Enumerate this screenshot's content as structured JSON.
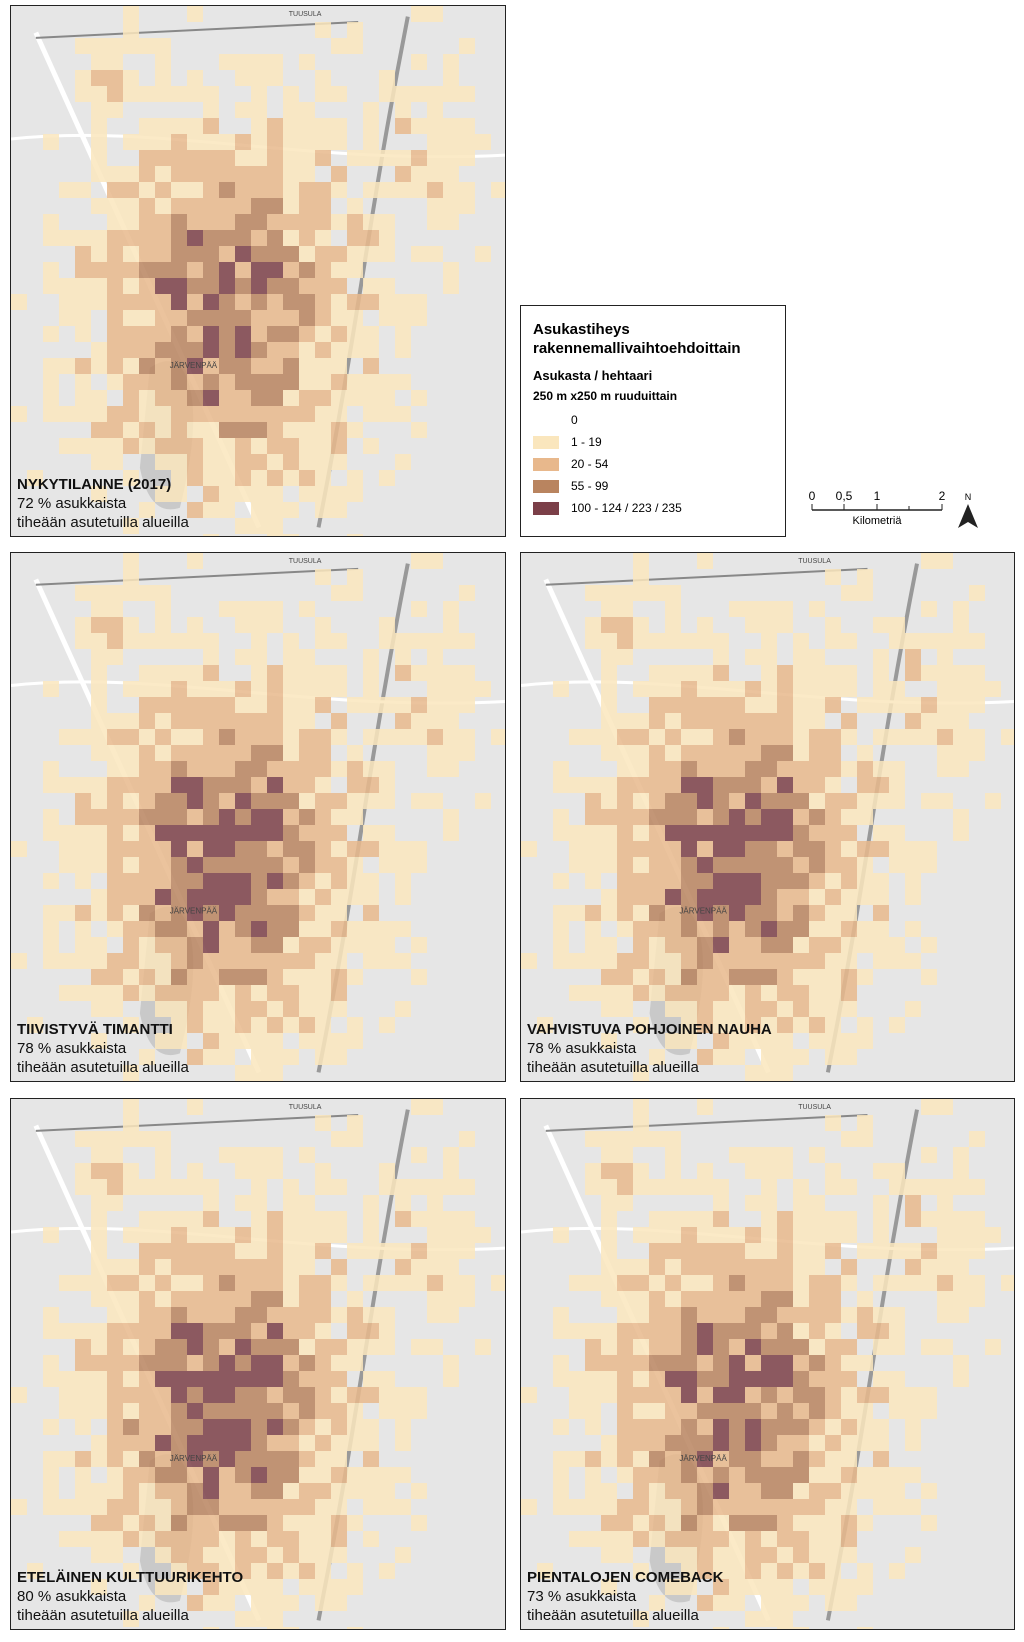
{
  "legend": {
    "title_lines": [
      "Asukastiheys",
      "rakennemallivaihtoehdoittain"
    ],
    "subtitle": "Asukasta / hehtaari",
    "unit": "250 m x250 m ruuduittain",
    "items": [
      {
        "label": "0",
        "color": "#ffffff"
      },
      {
        "label": "1 - 19",
        "color": "#fae6bd"
      },
      {
        "label": "20 - 54",
        "color": "#e8b88c"
      },
      {
        "label": "55 - 99",
        "color": "#b9845f"
      },
      {
        "label": "100 - 124 / 223 / 235",
        "color": "#7b3f48"
      }
    ]
  },
  "scale_bar": {
    "ticks": [
      "0",
      "0,5",
      "1",
      "2"
    ],
    "label": "Kilometriä"
  },
  "north": "N",
  "place_labels": [
    "TUUSULA",
    "JÄRVENPÄÄ"
  ],
  "maps": [
    {
      "title": "NYKYTILANNE (2017)",
      "share": "72 % asukkaista",
      "note": "tiheään asutetuilla alueilla"
    },
    {
      "title": "TIIVISTYVÄ TIMANTTI",
      "share": "78 % asukkaista",
      "note": "tiheään asutetuilla alueilla"
    },
    {
      "title": "VAHVISTUVA POHJOINEN NAUHA",
      "share": "78 % asukkaista",
      "note": "tiheään asutetuilla alueilla"
    },
    {
      "title": "ETELÄINEN KULTTUURIKEHTO",
      "share": "80 % asukkaista",
      "note": "tiheään asutetuilla alueilla"
    },
    {
      "title": "PIENTALOJEN COMEBACK",
      "share": "73 % asukkaista",
      "note": "tiheään asutetuilla alueilla"
    }
  ]
}
